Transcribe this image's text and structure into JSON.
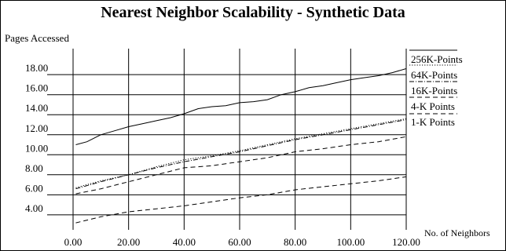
{
  "chart_data": {
    "type": "line",
    "title": "Nearest Neighbor Scalability - Synthetic Data",
    "ylabel": "Pages Accessed",
    "xlabel": "No. of Neighbors",
    "xlim": [
      0,
      120
    ],
    "ylim": [
      2.5,
      20.6
    ],
    "xticks": [
      0,
      20,
      40,
      60,
      80,
      100,
      120
    ],
    "xtick_labels": [
      "0.00",
      "20.00",
      "40.00",
      "60.00",
      "80.00",
      "100.00",
      "120.00"
    ],
    "yticks": [
      4,
      6,
      8,
      10,
      12,
      14,
      16,
      18
    ],
    "ytick_labels": [
      "4.00",
      "6.00",
      "8.00",
      "10.00",
      "12.00",
      "14.00",
      "16.00",
      "18.00"
    ],
    "grid": true,
    "legend_position": "right",
    "series": [
      {
        "name": "256K-Points",
        "style": "solid",
        "x": [
          1,
          5,
          10,
          15,
          20,
          25,
          30,
          35,
          40,
          45,
          50,
          55,
          60,
          65,
          70,
          75,
          80,
          85,
          90,
          95,
          100,
          105,
          110,
          115,
          120
        ],
        "y": [
          11.0,
          11.3,
          12.0,
          12.4,
          12.8,
          13.1,
          13.4,
          13.7,
          14.1,
          14.6,
          14.8,
          14.9,
          15.2,
          15.3,
          15.5,
          16.0,
          16.3,
          16.7,
          16.9,
          17.2,
          17.5,
          17.7,
          17.9,
          18.2,
          18.6
        ]
      },
      {
        "name": "64K-Points",
        "style": "dotted",
        "x": [
          1,
          10,
          20,
          30,
          40,
          50,
          60,
          70,
          80,
          90,
          100,
          110,
          120
        ],
        "y": [
          6.7,
          7.4,
          8.0,
          8.8,
          9.5,
          9.9,
          10.4,
          11.0,
          11.6,
          12.1,
          12.6,
          13.1,
          13.6
        ]
      },
      {
        "name": "16K-Points",
        "style": "dash-dot",
        "x": [
          1,
          10,
          20,
          30,
          40,
          50,
          60,
          70,
          80,
          90,
          100,
          110,
          120
        ],
        "y": [
          6.6,
          7.3,
          8.0,
          8.7,
          9.3,
          9.8,
          10.3,
          10.9,
          11.5,
          12.0,
          12.5,
          13.0,
          13.5
        ]
      },
      {
        "name": "4-K Points",
        "style": "dashed",
        "x": [
          1,
          10,
          20,
          30,
          40,
          50,
          60,
          70,
          80,
          90,
          100,
          110,
          120
        ],
        "y": [
          6.1,
          6.6,
          7.3,
          8.0,
          8.7,
          8.9,
          9.3,
          9.7,
          10.3,
          10.6,
          11.0,
          11.3,
          11.8
        ]
      },
      {
        "name": "1-K Points",
        "style": "dashed",
        "x": [
          1,
          10,
          20,
          30,
          40,
          50,
          60,
          70,
          80,
          90,
          100,
          110,
          120
        ],
        "y": [
          3.2,
          3.8,
          4.3,
          4.6,
          4.9,
          5.3,
          5.7,
          6.0,
          6.5,
          6.8,
          7.1,
          7.4,
          7.8
        ]
      }
    ]
  }
}
